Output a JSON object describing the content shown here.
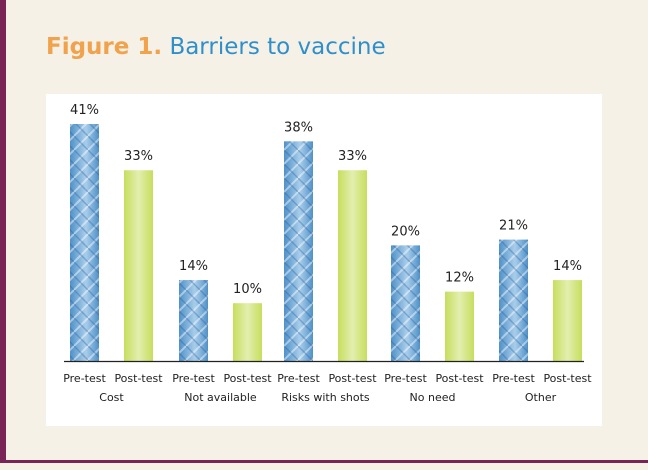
{
  "figure": {
    "label": "Figure 1.",
    "title": "Barriers to vaccine"
  },
  "colors": {
    "pre": "#4f91c8",
    "pre_light": "#a9cdea",
    "post": "#c6de5e",
    "post_light": "#e3eeae",
    "label_color": "#f0a24c",
    "title_color": "#2f8fcb",
    "rule": "#7a2356"
  },
  "chart_data": {
    "type": "bar",
    "title": "Barriers to vaccine",
    "categories": [
      "Cost",
      "Not available",
      "Risks with shots",
      "No need",
      "Other"
    ],
    "series": [
      {
        "name": "Pre-test",
        "values": [
          41,
          14,
          38,
          20,
          21
        ]
      },
      {
        "name": "Post-test",
        "values": [
          33,
          10,
          33,
          12,
          14
        ]
      }
    ],
    "value_labels": {
      "Pre-test": [
        "41%",
        "14%",
        "38%",
        "20%",
        "21%"
      ],
      "Post-test": [
        "33%",
        "10%",
        "33%",
        "12%",
        "14%"
      ]
    },
    "ylim": [
      0,
      41
    ],
    "grid": false,
    "legend": "none"
  }
}
